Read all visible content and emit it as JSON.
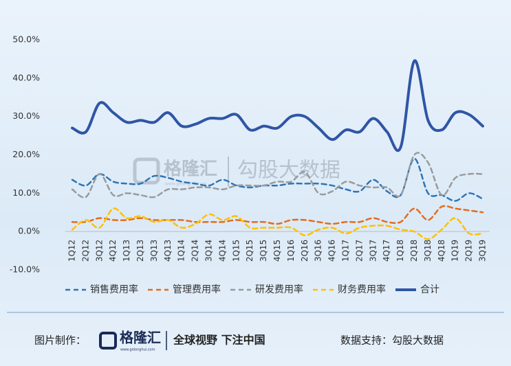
{
  "chart_data": {
    "type": "line",
    "categories": [
      "1Q12",
      "2Q12",
      "3Q12",
      "4Q12",
      "1Q13",
      "2Q13",
      "3Q13",
      "4Q13",
      "1Q14",
      "2Q14",
      "3Q14",
      "4Q14",
      "1Q15",
      "2Q15",
      "3Q15",
      "4Q15",
      "1Q16",
      "2Q16",
      "3Q16",
      "4Q16",
      "1Q17",
      "2Q17",
      "3Q17",
      "4Q17",
      "1Q18",
      "2Q18",
      "3Q18",
      "4Q18",
      "1Q19",
      "2Q19",
      "3Q19"
    ],
    "series": [
      {
        "name": "销售费用率",
        "color": "#2e75b6",
        "dash": true,
        "values": [
          13.5,
          12,
          15,
          13,
          12.5,
          12.5,
          14.5,
          14,
          13,
          12.5,
          12,
          13.5,
          12,
          11.5,
          12,
          12,
          12.5,
          12.5,
          12.5,
          12,
          11,
          10.5,
          13.5,
          10.5,
          9.5,
          19,
          10,
          9.5,
          8,
          10,
          8.5
        ]
      },
      {
        "name": "管理费用率",
        "color": "#e46c1c",
        "dash": true,
        "values": [
          2.5,
          2.5,
          3.5,
          3,
          3,
          3.5,
          3,
          3,
          3,
          2.5,
          2.5,
          2.5,
          3,
          2.5,
          2.5,
          2,
          3,
          3,
          2.5,
          2,
          2.5,
          2.5,
          3.5,
          2.5,
          2.5,
          6,
          3,
          6.5,
          6,
          5.5,
          5
        ]
      },
      {
        "name": "研发费用率",
        "color": "#9a9a9a",
        "dash": true,
        "values": [
          11,
          9,
          15,
          9.5,
          10,
          9.5,
          9,
          11,
          11,
          11.5,
          11.5,
          11,
          12,
          12,
          12,
          13,
          13,
          15.5,
          10,
          10.5,
          13,
          12,
          11.5,
          11.5,
          9.5,
          20,
          18,
          9.5,
          14,
          15,
          15
        ]
      },
      {
        "name": "财务费用率",
        "color": "#ffc000",
        "dash": true,
        "values": [
          0.5,
          3,
          1,
          6,
          3.5,
          4,
          2.5,
          3,
          1,
          2,
          4.5,
          3,
          4,
          1,
          1,
          1,
          1,
          -1,
          0.5,
          1,
          -0.5,
          1,
          1.5,
          1.5,
          0.5,
          0,
          -2,
          0.5,
          3.5,
          -0.5,
          -0.5
        ]
      },
      {
        "name": "合计",
        "color": "#2f55a5",
        "dash": false,
        "values": [
          27,
          26,
          33.5,
          31,
          28.5,
          29,
          28.5,
          31,
          27.5,
          28,
          29.5,
          29.5,
          30.5,
          26.5,
          27.5,
          27,
          30,
          30,
          27,
          24,
          26.5,
          26,
          29.5,
          26,
          22,
          44.5,
          29,
          26.5,
          31,
          30.5,
          27.5
        ]
      }
    ],
    "ylim": [
      -10,
      50
    ],
    "yticks": [
      {
        "value": -10,
        "label": "-10.0%"
      },
      {
        "value": 0,
        "label": "0.0%"
      },
      {
        "value": 10,
        "label": "10.0%"
      },
      {
        "value": 20,
        "label": "20.0%"
      },
      {
        "value": 30,
        "label": "30.0%"
      },
      {
        "value": 40,
        "label": "40.0%"
      },
      {
        "value": 50,
        "label": "50.0%"
      }
    ],
    "grid": false
  },
  "watermark": {
    "brand": "格隆汇",
    "site": "www.gelonghui.com",
    "partner": "勾股大数据"
  },
  "footer": {
    "made_by": "图片制作：",
    "brand": "格隆汇",
    "site": "www.gelonghui.com",
    "slogan": "全球视野 下注中国",
    "data_support": "数据支持：勾股大数据"
  }
}
